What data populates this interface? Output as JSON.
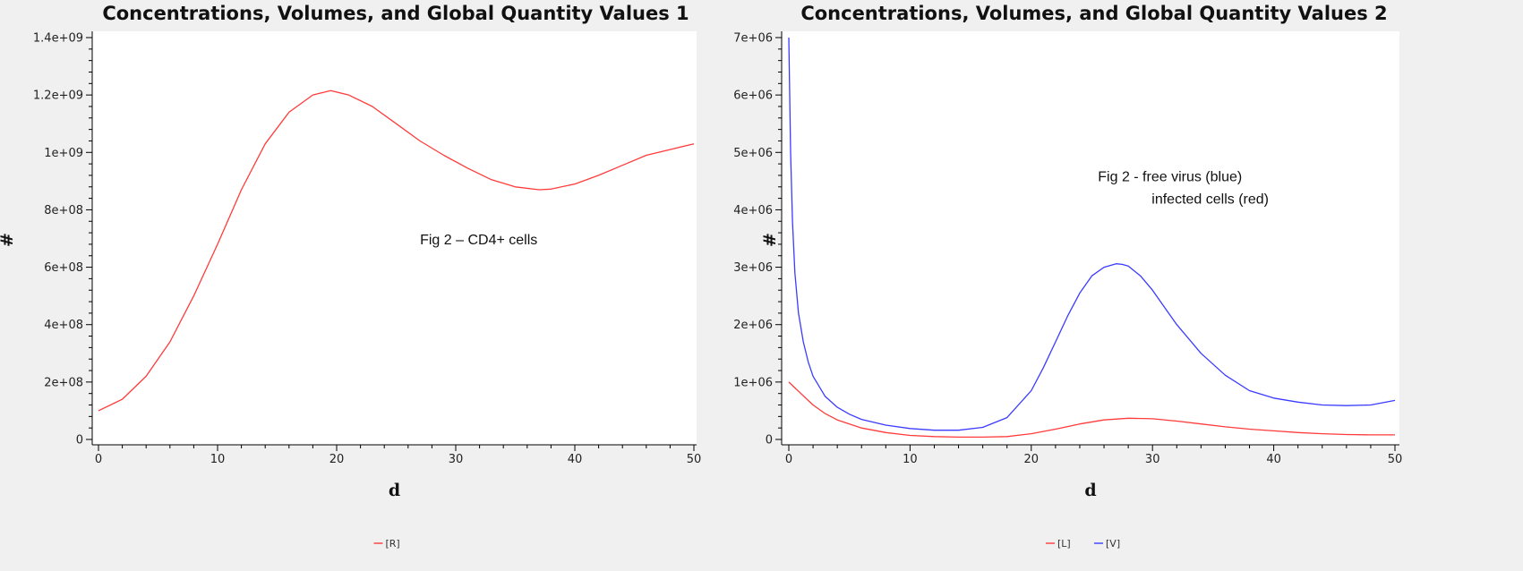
{
  "chart_data": [
    {
      "type": "line",
      "title": "Concentrations, Volumes, and Global Quantity Values 1",
      "xlabel": "d",
      "ylabel": "#",
      "xlim": [
        0,
        50
      ],
      "ylim": [
        0,
        1400000000
      ],
      "xticks": [
        0,
        10,
        20,
        30,
        40,
        50
      ],
      "xtick_labels": [
        "0",
        "10",
        "20",
        "30",
        "40",
        "50"
      ],
      "yticks": [
        0,
        200000000,
        400000000,
        600000000,
        800000000,
        1000000000,
        1200000000,
        1400000000
      ],
      "ytick_labels": [
        "0",
        "2e+08",
        "4e+08",
        "6e+08",
        "8e+08",
        "1e+09",
        "1.2e+09",
        "1.4e+09"
      ],
      "annotations": [
        {
          "lines": [
            "Fig 2 – CD4+ cells"
          ],
          "x": 27,
          "y": 680000000
        }
      ],
      "legend_position": "bottom",
      "grid": false,
      "series": [
        {
          "name": "[R]",
          "color": "#ff3b3b",
          "x": [
            0,
            2,
            4,
            6,
            8,
            10,
            12,
            14,
            16,
            18,
            19.5,
            21,
            23,
            25,
            27,
            29,
            31,
            33,
            35,
            37,
            38,
            40,
            42,
            44,
            46,
            48,
            50
          ],
          "y": [
            100000000,
            140000000,
            220000000,
            340000000,
            500000000,
            680000000,
            870000000,
            1030000000,
            1140000000,
            1200000000,
            1215000000,
            1200000000,
            1160000000,
            1100000000,
            1040000000,
            990000000,
            945000000,
            905000000,
            880000000,
            870000000,
            872000000,
            890000000,
            920000000,
            955000000,
            990000000,
            1010000000,
            1030000000
          ]
        }
      ]
    },
    {
      "type": "line",
      "title": "Concentrations, Volumes, and Global Quantity Values 2",
      "xlabel": "d",
      "ylabel": "#",
      "xlim": [
        0,
        50
      ],
      "ylim": [
        0,
        7000000
      ],
      "xticks": [
        0,
        10,
        20,
        30,
        40,
        50
      ],
      "xtick_labels": [
        "0",
        "10",
        "20",
        "30",
        "40",
        "50"
      ],
      "yticks": [
        0,
        1000000,
        2000000,
        3000000,
        4000000,
        5000000,
        6000000,
        7000000
      ],
      "ytick_labels": [
        "0",
        "1e+06",
        "2e+06",
        "3e+06",
        "4e+06",
        "5e+06",
        "6e+06",
        "7e+06"
      ],
      "annotations": [
        {
          "lines": [
            "Fig 2 - free virus (blue)",
            "infected cells (red)"
          ],
          "x": 25.5,
          "y": 4500000
        }
      ],
      "legend_position": "bottom",
      "grid": false,
      "series": [
        {
          "name": "[L]",
          "color": "#ff3b3b",
          "x": [
            0,
            1,
            2,
            3,
            4,
            6,
            8,
            10,
            12,
            14,
            16,
            18,
            20,
            22,
            24,
            26,
            28,
            30,
            32,
            34,
            36,
            38,
            40,
            42,
            44,
            46,
            48,
            50
          ],
          "y": [
            1000000,
            800000,
            600000,
            450000,
            340000,
            200000,
            120000,
            70000,
            50000,
            40000,
            40000,
            50000,
            100000,
            180000,
            270000,
            340000,
            370000,
            360000,
            320000,
            270000,
            220000,
            180000,
            150000,
            120000,
            100000,
            85000,
            80000,
            80000
          ]
        },
        {
          "name": "[V]",
          "color": "#3b3bff",
          "x": [
            0,
            0.15,
            0.3,
            0.5,
            0.8,
            1.2,
            1.6,
            2,
            3,
            4,
            5,
            6,
            8,
            10,
            12,
            14,
            16,
            18,
            20,
            21,
            22,
            23,
            24,
            25,
            26,
            27,
            27.5,
            28,
            29,
            30,
            31,
            32,
            34,
            36,
            38,
            40,
            42,
            44,
            46,
            48,
            50
          ],
          "y": [
            7000000,
            5000000,
            3800000,
            2900000,
            2200000,
            1700000,
            1350000,
            1100000,
            750000,
            560000,
            440000,
            350000,
            250000,
            190000,
            160000,
            160000,
            210000,
            380000,
            850000,
            1250000,
            1700000,
            2150000,
            2550000,
            2850000,
            3000000,
            3060000,
            3050000,
            3020000,
            2850000,
            2600000,
            2300000,
            2000000,
            1500000,
            1120000,
            850000,
            720000,
            650000,
            600000,
            590000,
            600000,
            680000
          ]
        }
      ]
    }
  ]
}
